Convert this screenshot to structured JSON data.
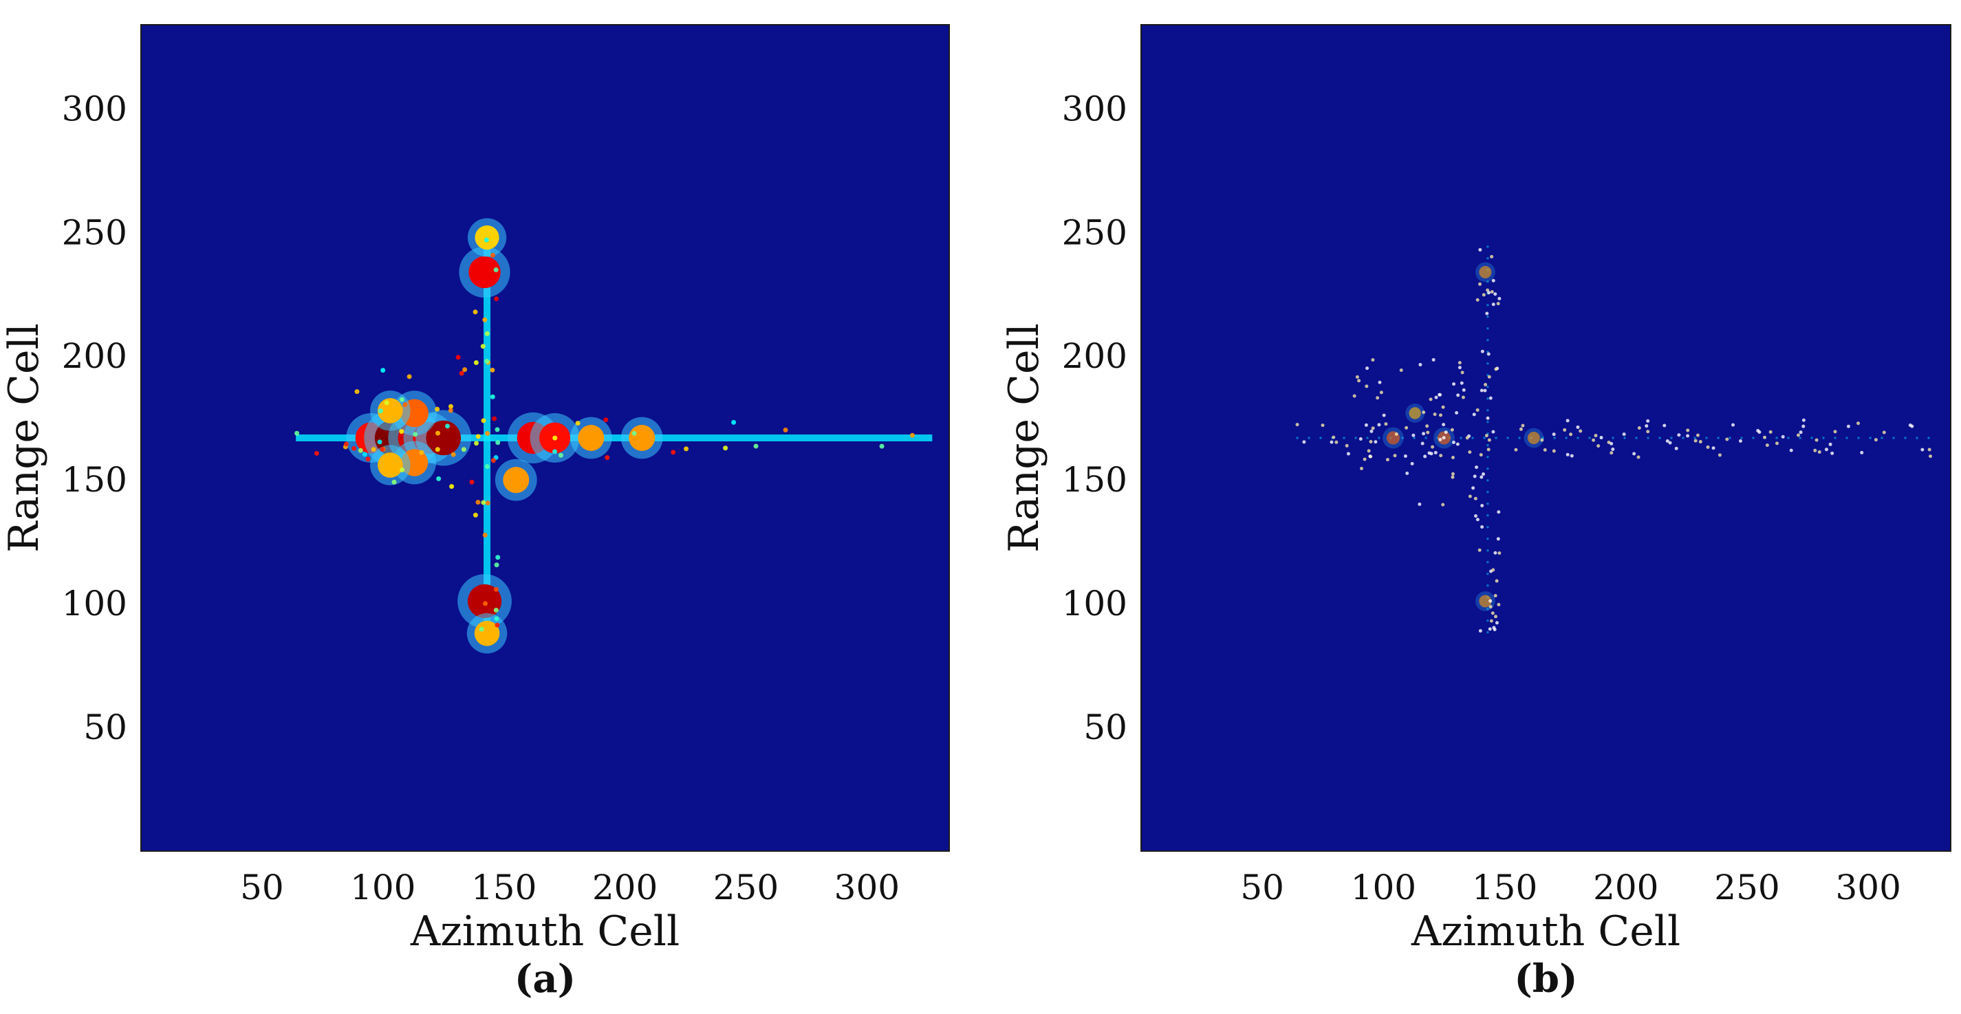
{
  "figure": {
    "panels": [
      {
        "caption": "(a)"
      },
      {
        "caption": "(b)"
      }
    ]
  },
  "chart_data": [
    {
      "type": "heatmap",
      "panel": "(a)",
      "xlabel": "Azimuth Cell",
      "ylabel": "Range Cell",
      "xticks": [
        50,
        100,
        150,
        200,
        250,
        300
      ],
      "yticks": [
        50,
        100,
        150,
        200,
        250,
        300
      ],
      "xlim": [
        0,
        334
      ],
      "ylim": [
        0,
        334
      ],
      "background": "#0a0f8c",
      "colormap": "jet",
      "features": [
        {
          "kind": "line",
          "from": [
            64,
            167
          ],
          "to": [
            327,
            167
          ],
          "intensity": 0.35
        },
        {
          "kind": "line",
          "from": [
            143,
            88
          ],
          "to": [
            143,
            248
          ],
          "intensity": 0.35
        },
        {
          "kind": "blob",
          "x": 95,
          "y": 167,
          "intensity": 0.75
        },
        {
          "kind": "blob",
          "x": 104,
          "y": 167,
          "intensity": 1.0
        },
        {
          "kind": "blob",
          "x": 113,
          "y": 167,
          "intensity": 0.85
        },
        {
          "kind": "blob",
          "x": 119,
          "y": 167,
          "intensity": 0.8
        },
        {
          "kind": "blob",
          "x": 125,
          "y": 167,
          "intensity": 0.95
        },
        {
          "kind": "blob",
          "x": 113,
          "y": 177,
          "intensity": 0.6
        },
        {
          "kind": "blob",
          "x": 113,
          "y": 157,
          "intensity": 0.55
        },
        {
          "kind": "blob",
          "x": 103,
          "y": 178,
          "intensity": 0.45
        },
        {
          "kind": "blob",
          "x": 103,
          "y": 156,
          "intensity": 0.45
        },
        {
          "kind": "blob",
          "x": 162,
          "y": 167,
          "intensity": 0.8
        },
        {
          "kind": "blob",
          "x": 171,
          "y": 167,
          "intensity": 0.75
        },
        {
          "kind": "blob",
          "x": 186,
          "y": 167,
          "intensity": 0.5
        },
        {
          "kind": "blob",
          "x": 207,
          "y": 167,
          "intensity": 0.5
        },
        {
          "kind": "blob",
          "x": 155,
          "y": 150,
          "intensity": 0.5
        },
        {
          "kind": "blob",
          "x": 142,
          "y": 234,
          "intensity": 0.8
        },
        {
          "kind": "blob",
          "x": 142,
          "y": 101,
          "intensity": 0.9
        },
        {
          "kind": "blob",
          "x": 143,
          "y": 88,
          "intensity": 0.45
        },
        {
          "kind": "blob",
          "x": 143,
          "y": 248,
          "intensity": 0.4
        }
      ]
    },
    {
      "type": "heatmap",
      "panel": "(b)",
      "xlabel": "Azimuth Cell",
      "ylabel": "Range Cell",
      "xticks": [
        50,
        100,
        150,
        200,
        250,
        300
      ],
      "yticks": [
        50,
        100,
        150,
        200,
        250,
        300
      ],
      "xlim": [
        0,
        334
      ],
      "ylim": [
        0,
        334
      ],
      "background": "#0a0f8c",
      "colormap": "jet",
      "features": [
        {
          "kind": "line",
          "from": [
            64,
            167
          ],
          "to": [
            327,
            167
          ],
          "intensity": 0.35
        },
        {
          "kind": "line",
          "from": [
            143,
            88
          ],
          "to": [
            143,
            248
          ],
          "intensity": 0.35
        },
        {
          "kind": "blob",
          "x": 104,
          "y": 167,
          "intensity": 0.6
        },
        {
          "kind": "blob",
          "x": 125,
          "y": 167,
          "intensity": 0.6
        },
        {
          "kind": "blob",
          "x": 113,
          "y": 177,
          "intensity": 0.45
        },
        {
          "kind": "blob",
          "x": 162,
          "y": 167,
          "intensity": 0.5
        },
        {
          "kind": "blob",
          "x": 142,
          "y": 234,
          "intensity": 0.5
        },
        {
          "kind": "blob",
          "x": 142,
          "y": 101,
          "intensity": 0.5
        }
      ]
    }
  ]
}
